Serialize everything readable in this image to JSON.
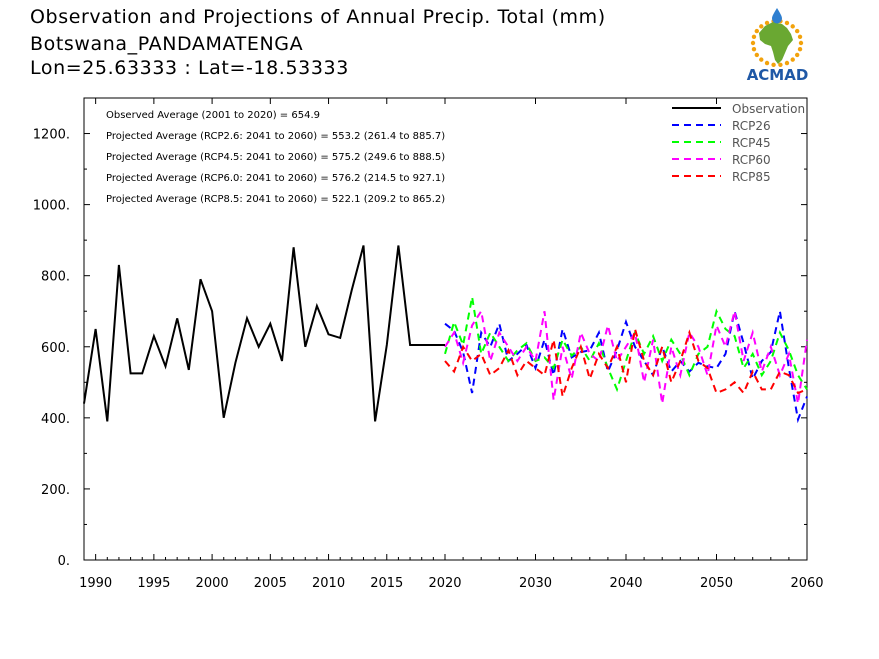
{
  "title": {
    "line1": "Observation and Projections of Annual Precip. Total (mm)",
    "line2": "Botswana_PANDAMATENGA",
    "line3": "Lon=25.63333 : Lat=-18.53333"
  },
  "logo": {
    "text": "ACMAD",
    "colors": {
      "africa": "#6aa832",
      "ring": "#f2a20c",
      "text": "#1f58a6",
      "drop": "#2f7fd0"
    }
  },
  "annotations": [
    "Observed Average (2001 to 2020) = 654.9",
    "Projected Average (RCP2.6: 2041 to 2060) = 553.2 (261.4 to 885.7)",
    "Projected Average (RCP4.5: 2041 to 2060) = 575.2 (249.6 to 888.5)",
    "Projected Average (RCP6.0: 2041 to 2060) = 576.2 (214.5 to 927.1)",
    "Projected Average (RCP8.5: 2041 to 2060) = 522.1 (209.2 to 865.2)"
  ],
  "chart_data": {
    "type": "line",
    "ylim": [
      0,
      1300
    ],
    "yticks": [
      0,
      200,
      400,
      600,
      800,
      1000,
      1200
    ],
    "ytick_labels": [
      "0.",
      "200.",
      "400.",
      "600.",
      "800.",
      "1000.",
      "1200."
    ],
    "xtick_labels_obs": [
      "1990",
      "1995",
      "2000",
      "2005",
      "2010",
      "2015",
      "2020"
    ],
    "xtick_values_obs": [
      1990,
      1995,
      2000,
      2005,
      2010,
      2015,
      2020
    ],
    "xtick_labels_proj": [
      "2030",
      "2040",
      "2050",
      "2060"
    ],
    "xtick_values_proj": [
      2030,
      2040,
      2050,
      2060
    ],
    "grid": false,
    "legend": "top-right",
    "series": [
      {
        "name": "Observation",
        "color": "#000000",
        "dash": "solid",
        "x": [
          1989,
          1990,
          1991,
          1992,
          1993,
          1994,
          1995,
          1996,
          1997,
          1998,
          1999,
          2000,
          2001,
          2002,
          2003,
          2004,
          2005,
          2006,
          2007,
          2008,
          2009,
          2010,
          2011,
          2012,
          2013,
          2014,
          2015,
          2016,
          2017,
          2018,
          2019,
          2020
        ],
        "values": [
          440,
          650,
          390,
          830,
          525,
          525,
          630,
          545,
          680,
          535,
          790,
          700,
          400,
          555,
          680,
          600,
          665,
          560,
          880,
          600,
          715,
          635,
          625,
          760,
          885,
          390,
          605,
          885,
          605,
          605,
          605,
          605
        ]
      },
      {
        "name": "RCP26",
        "color": "#0000ff",
        "dash": "dashed",
        "x": [
          2020,
          2021,
          2022,
          2023,
          2024,
          2025,
          2026,
          2027,
          2028,
          2029,
          2030,
          2031,
          2032,
          2033,
          2034,
          2035,
          2036,
          2037,
          2038,
          2039,
          2040,
          2041,
          2042,
          2043,
          2044,
          2045,
          2046,
          2047,
          2048,
          2049,
          2050,
          2051,
          2052,
          2053,
          2054,
          2055,
          2056,
          2057,
          2058,
          2059,
          2060
        ],
        "values": [
          665,
          645,
          585,
          470,
          640,
          600,
          665,
          560,
          580,
          605,
          540,
          620,
          520,
          650,
          570,
          585,
          590,
          640,
          530,
          590,
          670,
          600,
          560,
          520,
          600,
          530,
          560,
          530,
          555,
          545,
          540,
          580,
          700,
          610,
          510,
          560,
          585,
          700,
          540,
          395,
          460
        ]
      },
      {
        "name": "RCP45",
        "color": "#00ff00",
        "dash": "dashed",
        "x": [
          2020,
          2021,
          2022,
          2023,
          2024,
          2025,
          2026,
          2027,
          2028,
          2029,
          2030,
          2031,
          2032,
          2033,
          2034,
          2035,
          2036,
          2037,
          2038,
          2039,
          2040,
          2041,
          2042,
          2043,
          2044,
          2045,
          2046,
          2047,
          2048,
          2049,
          2050,
          2051,
          2052,
          2053,
          2054,
          2055,
          2056,
          2057,
          2058,
          2059,
          2060
        ],
        "values": [
          580,
          670,
          605,
          740,
          580,
          640,
          600,
          560,
          590,
          610,
          560,
          570,
          540,
          620,
          575,
          600,
          560,
          610,
          540,
          480,
          560,
          640,
          580,
          630,
          560,
          620,
          580,
          520,
          580,
          600,
          700,
          650,
          630,
          540,
          580,
          520,
          560,
          640,
          590,
          520,
          480
        ]
      },
      {
        "name": "RCP60",
        "color": "#ff00ff",
        "dash": "dashed",
        "x": [
          2020,
          2021,
          2022,
          2023,
          2024,
          2025,
          2026,
          2027,
          2028,
          2029,
          2030,
          2031,
          2032,
          2033,
          2034,
          2035,
          2036,
          2037,
          2038,
          2039,
          2040,
          2041,
          2042,
          2043,
          2044,
          2045,
          2046,
          2047,
          2048,
          2049,
          2050,
          2051,
          2052,
          2053,
          2054,
          2055,
          2056,
          2057,
          2058,
          2059,
          2060
        ],
        "values": [
          600,
          640,
          555,
          660,
          700,
          560,
          640,
          600,
          560,
          600,
          560,
          700,
          450,
          600,
          510,
          640,
          580,
          560,
          660,
          560,
          600,
          640,
          500,
          620,
          440,
          600,
          520,
          640,
          600,
          520,
          660,
          600,
          700,
          560,
          640,
          530,
          600,
          520,
          580,
          440,
          620
        ]
      },
      {
        "name": "RCP85",
        "color": "#ff0000",
        "dash": "dashed",
        "x": [
          2020,
          2021,
          2022,
          2023,
          2024,
          2025,
          2026,
          2027,
          2028,
          2029,
          2030,
          2031,
          2032,
          2033,
          2034,
          2035,
          2036,
          2037,
          2038,
          2039,
          2040,
          2041,
          2042,
          2043,
          2044,
          2045,
          2046,
          2047,
          2048,
          2049,
          2050,
          2051,
          2052,
          2053,
          2054,
          2055,
          2056,
          2057,
          2058,
          2059,
          2060
        ],
        "values": [
          560,
          530,
          600,
          560,
          580,
          520,
          540,
          590,
          520,
          560,
          540,
          520,
          620,
          460,
          540,
          600,
          510,
          580,
          540,
          600,
          500,
          650,
          560,
          520,
          600,
          500,
          560,
          640,
          560,
          540,
          470,
          480,
          500,
          470,
          530,
          480,
          480,
          530,
          520,
          470,
          480
        ]
      }
    ]
  }
}
